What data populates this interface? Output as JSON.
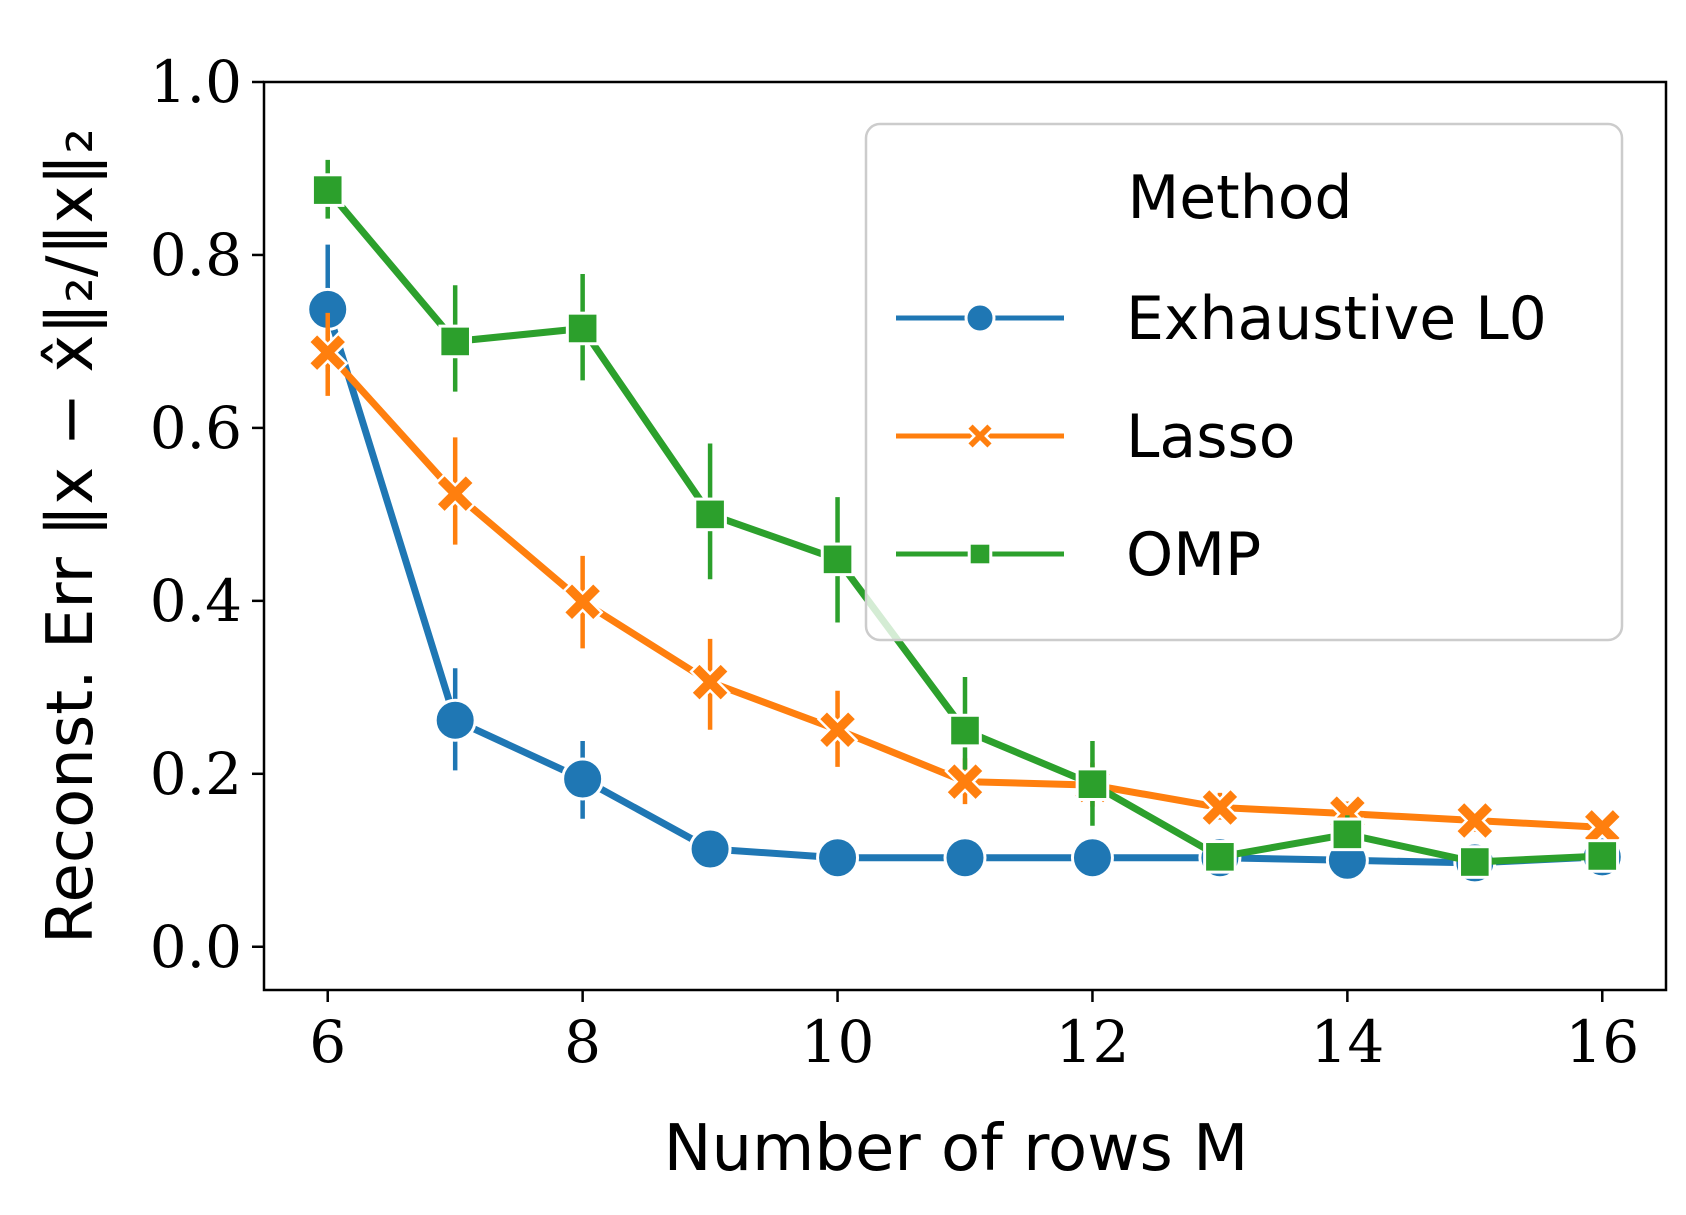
{
  "chart_data": {
    "type": "line",
    "xlabel": "Number of rows M",
    "ylabel": "Reconst. Err ‖x − x̂‖₂/‖x‖₂",
    "xlim": [
      5.5,
      16.5
    ],
    "ylim": [
      -0.05,
      1.0
    ],
    "xticks": [
      6,
      8,
      10,
      12,
      14,
      16
    ],
    "yticks": [
      0.0,
      0.2,
      0.4,
      0.6,
      0.8,
      1.0
    ],
    "xtick_labels": [
      "6",
      "8",
      "10",
      "12",
      "14",
      "16"
    ],
    "ytick_labels": [
      "0.0",
      "0.2",
      "0.4",
      "0.6",
      "0.8",
      "1.0"
    ],
    "grid": false,
    "legend": {
      "title": "Method",
      "placement": "top-right"
    },
    "x": [
      6,
      7,
      8,
      9,
      10,
      11,
      12,
      13,
      14,
      15,
      16
    ],
    "series": [
      {
        "name": "Exhaustive L0",
        "color": "#1f77b4",
        "marker": "circle",
        "values": [
          0.737,
          0.262,
          0.194,
          0.113,
          0.103,
          0.103,
          0.103,
          0.103,
          0.1,
          0.097,
          0.104
        ],
        "err_low": [
          0.665,
          0.204,
          0.148,
          0.094,
          0.095,
          0.097,
          0.097,
          0.097,
          0.093,
          0.089,
          0.097
        ],
        "err_high": [
          0.812,
          0.322,
          0.238,
          0.132,
          0.111,
          0.111,
          0.111,
          0.111,
          0.108,
          0.104,
          0.112
        ]
      },
      {
        "name": "Lasso",
        "color": "#ff7f0e",
        "marker": "x",
        "values": [
          0.687,
          0.524,
          0.399,
          0.306,
          0.251,
          0.191,
          0.187,
          0.161,
          0.154,
          0.146,
          0.138
        ],
        "err_low": [
          0.637,
          0.465,
          0.345,
          0.251,
          0.208,
          0.165,
          0.162,
          0.147,
          0.141,
          0.133,
          0.128
        ],
        "err_high": [
          0.733,
          0.589,
          0.452,
          0.356,
          0.296,
          0.218,
          0.213,
          0.178,
          0.168,
          0.158,
          0.149
        ]
      },
      {
        "name": "OMP",
        "color": "#2ca02c",
        "marker": "square",
        "values": [
          0.875,
          0.7,
          0.715,
          0.5,
          0.448,
          0.25,
          0.188,
          0.104,
          0.13,
          0.098,
          0.105
        ],
        "err_low": [
          0.842,
          0.642,
          0.655,
          0.425,
          0.375,
          0.205,
          0.14,
          0.092,
          0.112,
          0.09,
          0.096
        ],
        "err_high": [
          0.91,
          0.765,
          0.778,
          0.582,
          0.52,
          0.312,
          0.238,
          0.118,
          0.152,
          0.108,
          0.114
        ]
      }
    ]
  }
}
